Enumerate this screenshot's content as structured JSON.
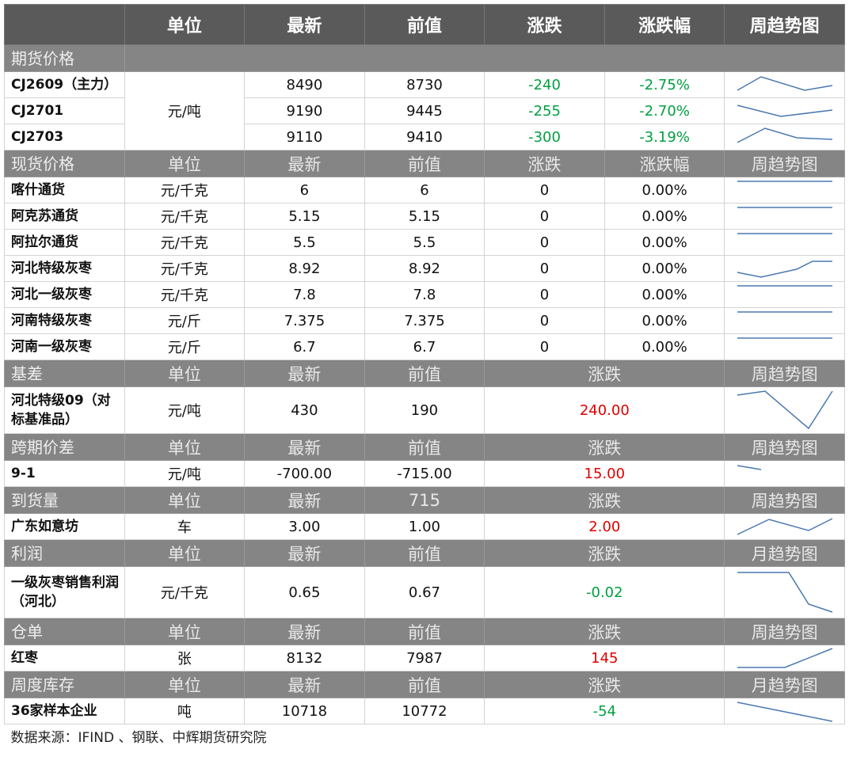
{
  "header": [
    "单位",
    "最新",
    "前值",
    "涨跌",
    "涨跌幅",
    "周趋势图"
  ],
  "sections": [
    {
      "header": [
        "期货价格"
      ],
      "unit": "元/吨",
      "rows": [
        [
          "CJ2609（主力）",
          "8490",
          "8730",
          "-240",
          "-2.75%"
        ],
        [
          "CJ2701",
          "9190",
          "9445",
          "-255",
          "-2.70%"
        ],
        [
          "CJ2703",
          "9110",
          "9410",
          "-300",
          "-3.19%"
        ]
      ]
    },
    {
      "header": [
        "现货价格",
        "单位",
        "最新",
        "前值",
        "涨跌",
        "涨跌幅",
        "周趋势图"
      ],
      "rows": [
        [
          "喀什通货",
          "元/千克",
          "6",
          "6",
          "0",
          "0.00%"
        ],
        [
          "阿克苏通货",
          "元/千克",
          "5.15",
          "5.15",
          "0",
          "0.00%"
        ],
        [
          "阿拉尔通货",
          "元/千克",
          "5.5",
          "5.5",
          "0",
          "0.00%"
        ],
        [
          "河北特级灰枣",
          "元/千克",
          "8.92",
          "8.92",
          "0",
          "0.00%"
        ],
        [
          "河北一级灰枣",
          "元/千克",
          "7.8",
          "7.8",
          "0",
          "0.00%"
        ],
        [
          "河南特级灰枣",
          "元/斤",
          "7.375",
          "7.375",
          "0",
          "0.00%"
        ],
        [
          "河南一级灰枣",
          "元/斤",
          "6.7",
          "6.7",
          "0",
          "0.00%"
        ]
      ]
    },
    {
      "header": [
        "基差",
        "单位",
        "最新",
        "前值",
        "涨跌",
        "周趋势图"
      ],
      "rows": [
        [
          "河北特级09（对标基准品）",
          "元/吨",
          "430",
          "190",
          "240.00"
        ]
      ]
    },
    {
      "header": [
        "跨期价差",
        "单位",
        "最新",
        "前值",
        "涨跌",
        "周趋势图"
      ],
      "rows": [
        [
          "9-1",
          "元/吨",
          "-700.00",
          "-715.00",
          "15.00"
        ]
      ]
    },
    {
      "header": [
        "到货量",
        "单位",
        "最新",
        "715",
        "涨跌",
        "周趋势图"
      ],
      "rows": [
        [
          "广东如意坊",
          "车",
          "3.00",
          "1.00",
          "2.00"
        ]
      ]
    },
    {
      "header": [
        "利润",
        "单位",
        "最新",
        "前值",
        "涨跌",
        "月趋势图"
      ],
      "rows": [
        [
          "一级灰枣销售利润（河北）",
          "元/千克",
          "0.65",
          "0.67",
          "-0.02"
        ]
      ]
    },
    {
      "header": [
        "仓单",
        "单位",
        "最新",
        "前值",
        "涨跌",
        "周趋势图"
      ],
      "rows": [
        [
          "红枣",
          "张",
          "8132",
          "7987",
          "145"
        ]
      ]
    },
    {
      "header": [
        "周度库存",
        "单位",
        "最新",
        "前值",
        "涨跌",
        "月趋势图"
      ],
      "rows": [
        [
          "36家样本企业",
          "吨",
          "10718",
          "10772",
          "-54"
        ]
      ]
    }
  ],
  "source": "数据来源：IFIND 、钢联、中辉期货研究院"
}
